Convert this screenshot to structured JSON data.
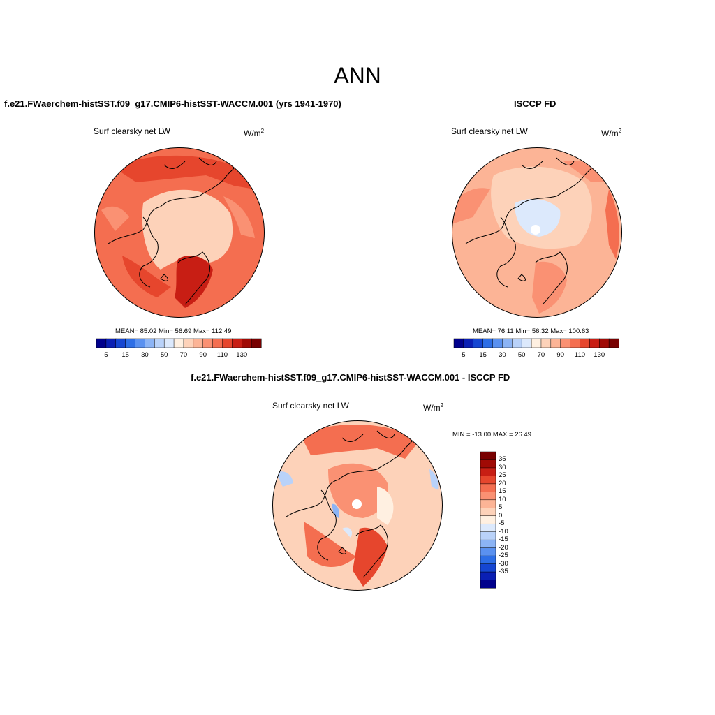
{
  "title": "ANN",
  "panels": [
    {
      "title": "f.e21.FWaerchem-histSST.f09_g17.CMIP6-histSST-WACCM.001 (yrs 1941-1970)",
      "variable": "Surf clearsky net LW",
      "units": "W/m",
      "units_sup": "2",
      "stats": "MEAN=  85.02  Min=  56.69  Max= 112.49"
    },
    {
      "title": "ISCCP FD",
      "variable": "Surf clearsky net LW",
      "units": "W/m",
      "units_sup": "2",
      "stats": "MEAN=  76.11  Min=  56.32  Max= 100.63"
    },
    {
      "title": "f.e21.FWaerchem-histSST.f09_g17.CMIP6-histSST-WACCM.001 - ISCCP FD",
      "variable": "Surf clearsky net LW",
      "units": "W/m",
      "units_sup": "2",
      "stats": "MIN = -13.00 MAX =  26.49"
    }
  ],
  "abs_colorbar": {
    "colors": [
      "#00008c",
      "#0a1fb4",
      "#1546d2",
      "#2d6ee6",
      "#5a91f0",
      "#8cb4f5",
      "#b9d2f9",
      "#dce9fc",
      "#fff0e1",
      "#fdd2b9",
      "#fcb496",
      "#fa9173",
      "#f46e50",
      "#e6462d",
      "#c81e14",
      "#a00a05",
      "#780000"
    ],
    "labels": [
      "5",
      "15",
      "30",
      "50",
      "70",
      "90",
      "110",
      "130"
    ]
  },
  "diff_colorbar": {
    "colors_top_to_bottom": [
      "#780000",
      "#a00a05",
      "#c81e14",
      "#e6462d",
      "#f46e50",
      "#fa9173",
      "#fcb496",
      "#fdd2b9",
      "#fff0e1",
      "#dce9fc",
      "#b9d2f9",
      "#8cb4f5",
      "#5a91f0",
      "#2d6ee6",
      "#1546d2",
      "#0a1fb4",
      "#00008c"
    ],
    "labels_top_to_bottom": [
      "35",
      "30",
      "25",
      "20",
      "15",
      "10",
      "5",
      "0",
      "-5",
      "-10",
      "-15",
      "-20",
      "-25",
      "-30",
      "-35"
    ]
  }
}
